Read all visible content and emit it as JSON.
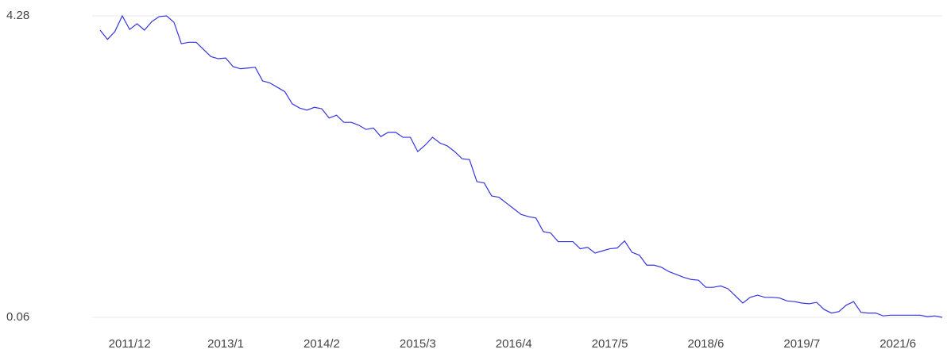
{
  "chart_data": {
    "type": "line",
    "categories": [
      null,
      null,
      null,
      null,
      "2011/12",
      null,
      null,
      null,
      null,
      null,
      null,
      null,
      null,
      null,
      null,
      null,
      null,
      "2013/1",
      null,
      null,
      null,
      null,
      null,
      null,
      null,
      null,
      null,
      null,
      null,
      null,
      "2014/2",
      null,
      null,
      null,
      null,
      null,
      null,
      null,
      null,
      null,
      null,
      null,
      null,
      "2015/3",
      null,
      null,
      null,
      null,
      null,
      null,
      null,
      null,
      null,
      null,
      null,
      null,
      "2016/4",
      null,
      null,
      null,
      null,
      null,
      null,
      null,
      null,
      null,
      null,
      null,
      null,
      "2017/5",
      null,
      null,
      null,
      null,
      null,
      null,
      null,
      null,
      null,
      null,
      null,
      null,
      "2018/6",
      null,
      null,
      null,
      null,
      null,
      null,
      null,
      null,
      null,
      null,
      null,
      null,
      "2019/7",
      null,
      null,
      null,
      null,
      null,
      null,
      null,
      null,
      null,
      null,
      null,
      null,
      "2021/6",
      null,
      null,
      null,
      null,
      null,
      null
    ],
    "values": [
      4.08,
      3.95,
      4.06,
      4.28,
      4.09,
      4.17,
      4.08,
      4.2,
      4.27,
      4.28,
      4.19,
      3.89,
      3.91,
      3.91,
      3.81,
      3.71,
      3.68,
      3.69,
      3.57,
      3.54,
      3.55,
      3.56,
      3.37,
      3.34,
      3.28,
      3.22,
      3.05,
      2.99,
      2.96,
      3.0,
      2.98,
      2.85,
      2.89,
      2.79,
      2.79,
      2.75,
      2.69,
      2.71,
      2.59,
      2.65,
      2.65,
      2.58,
      2.58,
      2.38,
      2.47,
      2.58,
      2.5,
      2.46,
      2.38,
      2.28,
      2.27,
      1.96,
      1.94,
      1.76,
      1.74,
      1.66,
      1.58,
      1.5,
      1.47,
      1.45,
      1.26,
      1.24,
      1.12,
      1.12,
      1.12,
      1.02,
      1.04,
      0.96,
      0.99,
      1.02,
      1.03,
      1.13,
      0.97,
      0.93,
      0.79,
      0.79,
      0.76,
      0.7,
      0.66,
      0.62,
      0.59,
      0.58,
      0.48,
      0.48,
      0.5,
      0.46,
      0.36,
      0.26,
      0.34,
      0.37,
      0.34,
      0.34,
      0.33,
      0.29,
      0.28,
      0.26,
      0.25,
      0.27,
      0.17,
      0.12,
      0.14,
      0.23,
      0.28,
      0.13,
      0.12,
      0.12,
      0.08,
      0.09,
      0.09,
      0.09,
      0.09,
      0.09,
      0.07,
      0.08,
      0.06
    ],
    "color": "#3535e0",
    "ylim": [
      0.06,
      4.28
    ],
    "yticks": [
      0.06,
      4.28
    ],
    "grid": true
  }
}
